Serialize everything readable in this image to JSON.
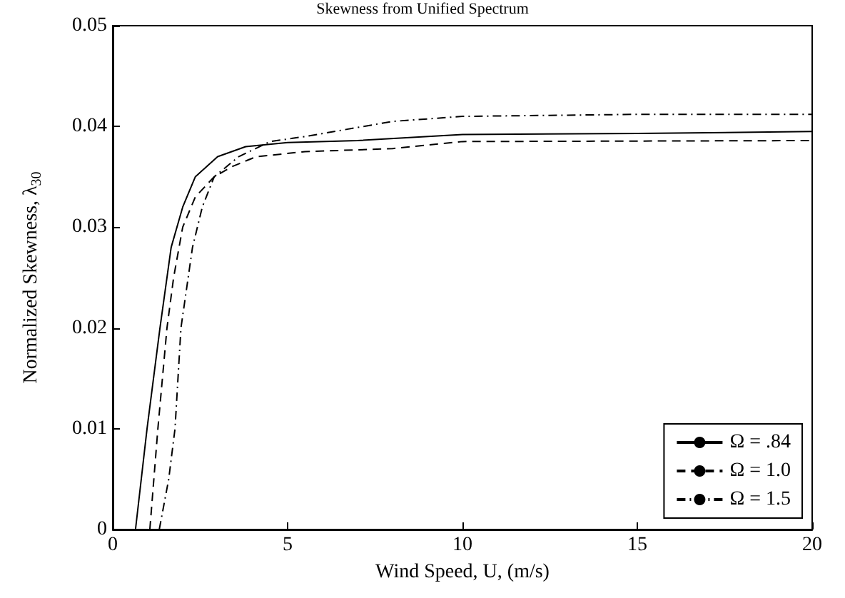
{
  "chart_data": {
    "type": "line",
    "title": "Skewness from Unified Spectrum",
    "xlabel": "Wind Speed, U, (m/s)",
    "ylabel": "Normalized Skewness, λ$_{30}$",
    "xlim": [
      0,
      20
    ],
    "xticks": [
      0,
      5,
      10,
      15,
      20
    ],
    "ylim": [
      0,
      0.05
    ],
    "yticks": [
      0,
      0.01,
      0.02,
      0.03,
      0.04,
      0.05
    ],
    "grid": false,
    "legend": "bottom right",
    "marker": "none",
    "series": [
      {
        "name": "Ω = .84",
        "color": "#000000",
        "line_style": "solid",
        "x": [
          0.65,
          0.98,
          1.35,
          1.67,
          2.0,
          2.36,
          3.0,
          3.8,
          5,
          7,
          10,
          15,
          20
        ],
        "values": [
          0,
          0.01,
          0.02,
          0.028,
          0.032,
          0.035,
          0.037,
          0.038,
          0.0384,
          0.0386,
          0.0392,
          0.0393,
          0.0395
        ]
      },
      {
        "name": "Ω = 1.0",
        "color": "#000000",
        "line_style": "dashed",
        "x": [
          1.06,
          1.29,
          1.55,
          1.74,
          2.0,
          2.36,
          2.9,
          3.4,
          4.1,
          5.5,
          8,
          10,
          20
        ],
        "values": [
          0,
          0.01,
          0.02,
          0.025,
          0.03,
          0.033,
          0.035,
          0.036,
          0.037,
          0.0375,
          0.0378,
          0.0385,
          0.0386
        ]
      },
      {
        "name": "Ω = 1.5",
        "color": "#000000",
        "line_style": "dashdot",
        "x": [
          1.33,
          1.6,
          1.78,
          1.95,
          2.28,
          2.56,
          2.9,
          3.6,
          4.5,
          5.5,
          8,
          10,
          15,
          20
        ],
        "values": [
          0,
          0.005,
          0.01,
          0.02,
          0.028,
          0.032,
          0.035,
          0.037,
          0.0385,
          0.039,
          0.0405,
          0.041,
          0.0412,
          0.0412
        ]
      }
    ]
  }
}
